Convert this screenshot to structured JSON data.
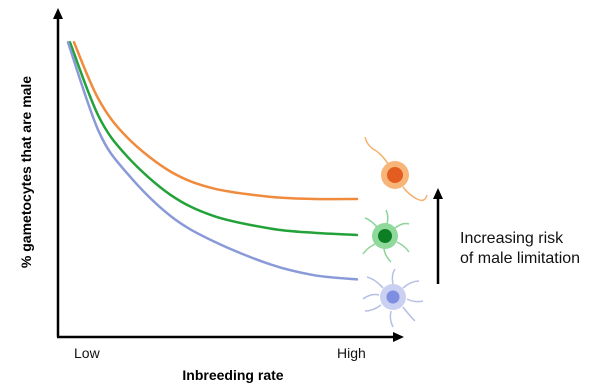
{
  "chart_data": {
    "type": "line",
    "xlabel": "Inbreeding rate",
    "ylabel": "% gametocytes that are male",
    "x_ticks": [
      "Low",
      "High"
    ],
    "grid": false,
    "series": [
      {
        "color": "#f08a3c",
        "x": [
          0.0,
          0.1,
          0.2,
          0.35,
          0.5,
          0.7,
          0.85,
          1.0
        ],
        "y": [
          0.97,
          0.7,
          0.52,
          0.36,
          0.28,
          0.24,
          0.23,
          0.23
        ]
      },
      {
        "color": "#23a23a",
        "x": [
          0.0,
          0.1,
          0.2,
          0.35,
          0.5,
          0.7,
          0.85,
          1.0
        ],
        "y": [
          0.97,
          0.62,
          0.43,
          0.25,
          0.15,
          0.09,
          0.07,
          0.06
        ]
      },
      {
        "color": "#8a9ad8",
        "x": [
          0.0,
          0.1,
          0.2,
          0.35,
          0.5,
          0.7,
          0.85,
          1.0
        ],
        "y": [
          0.97,
          0.55,
          0.35,
          0.15,
          0.03,
          -0.08,
          -0.13,
          -0.15
        ]
      }
    ],
    "icons": [
      "orange-gametocyte-icon",
      "green-gametocyte-icon",
      "blue-gametocyte-icon"
    ],
    "annotation": {
      "line1": "Increasing risk",
      "line2": "of male limitation",
      "direction": "up"
    }
  }
}
